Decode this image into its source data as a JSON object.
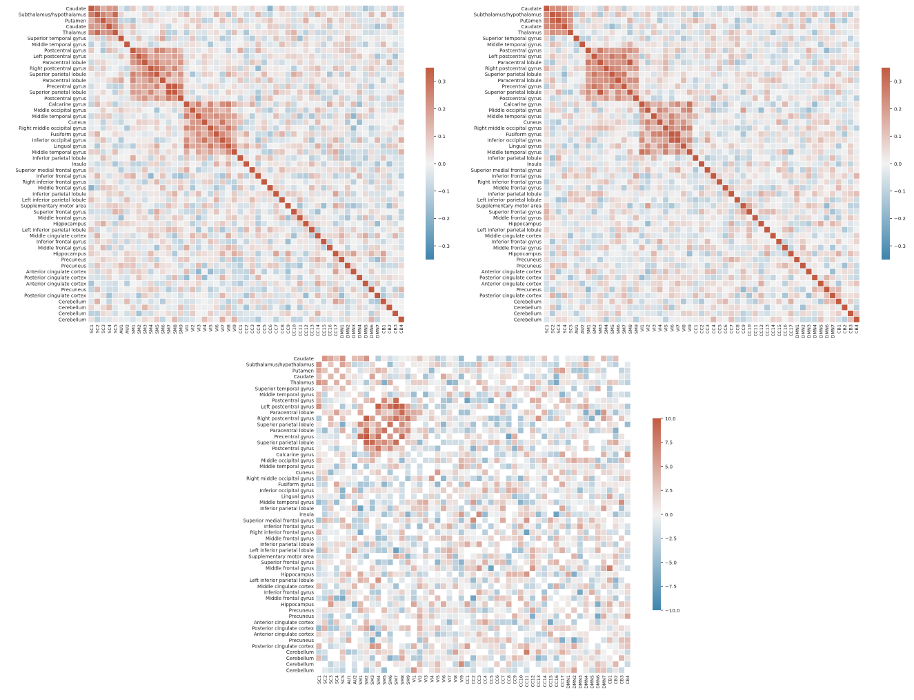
{
  "row_labels": [
    "Caudate",
    "Subthalamus/hypothalamus",
    "Putamen",
    "Caudate",
    "Thalamus",
    "Superior temporal gyrus",
    "Middle temporal gyrus",
    "Postcentral gyrus",
    "Left postcentral gyrus",
    "Paracentral lobule",
    "Right postcentral gyrus",
    "Superior parietal lobule",
    "Paracentral lobule",
    "Precentral gyrus",
    "Superior parietal lobule",
    "Postcentral gyrus",
    "Calcarine gyrus",
    "Middle occipital gyrus",
    "Middle temporal gyrus",
    "Cuneus",
    "Right middle occipital gyrus",
    "Fusiform gyrus",
    "Inferior occipital gyrus",
    "Lingual gyrus",
    "Middle temporal gyrus",
    "Inferior parietal lobule",
    "Insula",
    "Superior medial frontal gyrus",
    "Inferior frontal gyrus",
    "Right inferior frontal gyrus",
    "Middle frontal gyrus",
    "Inferior parietal lobule",
    "Left inferior parietal lobule",
    "Supplementary motor area",
    "Superior frontal gyrus",
    "Middle frontal gyrus",
    "Hippocampus",
    "Left inferior parietal lobule",
    "Middle cingulate cortex",
    "Inferior frontal gyrus",
    "Middle frontal gyrus",
    "Hippocampus",
    "Precuneus",
    "Precuneus",
    "Anterior cingulate cortex",
    "Posterior cingulate cortex",
    "Anterior cingulate cortex",
    "Precuneus",
    "Posterior cingulate cortex",
    "Cerebellum",
    "Cerebellum",
    "Cerebellum",
    "Cerebellum"
  ],
  "col_labels_a": [
    "SC1",
    "SC2",
    "SC3",
    "SC4",
    "SC5",
    "AU1",
    "AU2",
    "SM1",
    "SM2",
    "SM3",
    "SM4",
    "SM5",
    "SM6",
    "SM7",
    "SM8",
    "SM9",
    "VI1",
    "VI2",
    "VI3",
    "VI4",
    "VI5",
    "VI6",
    "VI7",
    "VI8",
    "VI9",
    "CC1",
    "CC2",
    "CC3",
    "CC4",
    "CC5",
    "CC6",
    "CC7",
    "CC8",
    "CC9",
    "CC10",
    "CC11",
    "CC12",
    "CC13",
    "CC14",
    "CC15",
    "CC16",
    "CC17",
    "DMN1",
    "DMN2",
    "DMN3",
    "DMN4",
    "DMN5",
    "DMN6",
    "DMN7",
    "CB1",
    "CB2",
    "CB3",
    "CB4"
  ],
  "col_labels_b": [
    "SC1",
    "SC2",
    "SC3",
    "SC4",
    "SC5",
    "AU1",
    "AU2",
    "SM1",
    "SM2",
    "SM3",
    "SM4",
    "SM5",
    "SM6",
    "SM7",
    "SM8",
    "SM9",
    "VI1",
    "VI2",
    "VI3",
    "VI4",
    "VI5",
    "VI6",
    "VI7",
    "VI8",
    "VI9",
    "CC1",
    "CC2",
    "CC3",
    "CC4",
    "CC5",
    "CC6",
    "CC7",
    "CC8",
    "CC9",
    "CC10",
    "CC11",
    "CC12",
    "CC13",
    "CC14",
    "CC15",
    "CC16",
    "CC17",
    "DMN1",
    "DMN2",
    "DMN3",
    "DMN4",
    "DMN5",
    "DMN6",
    "DMN7",
    "CB1",
    "CB2",
    "CB3",
    "CB4"
  ],
  "colors": {
    "low": "#3d84ad",
    "mid": "#f2f2f2",
    "high": "#c25a41",
    "na": "#ffffff"
  },
  "chart_data": [
    {
      "type": "heatmap",
      "matrix": "A",
      "diagonal": 1,
      "clim": [
        -0.35,
        0.35
      ],
      "colorbar_ticks": [
        0.3,
        0.2,
        0.1,
        0.0,
        -0.1,
        -0.2,
        -0.3
      ],
      "colorbar_tick_labels": [
        "0.3",
        "0.2",
        "0.1",
        "0.0",
        "−0.1",
        "−0.2",
        "−0.3"
      ],
      "colorbar_range": [
        -0.35,
        0.35
      ],
      "blocks": [
        {
          "start": 0,
          "end": 5,
          "value": 0.22
        },
        {
          "start": 7,
          "end": 16,
          "value": 0.2
        },
        {
          "start": 16,
          "end": 25,
          "value": 0.18
        }
      ],
      "noise_seed": 11,
      "noise_scale": 0.13
    },
    {
      "type": "heatmap",
      "matrix": "B",
      "diagonal": 1,
      "clim": [
        -0.35,
        0.35
      ],
      "colorbar_ticks": [
        0.3,
        0.2,
        0.1,
        0.0,
        -0.1,
        -0.2,
        -0.3
      ],
      "colorbar_tick_labels": [
        "0.3",
        "0.2",
        "0.1",
        "0.0",
        "−0.1",
        "−0.2",
        "−0.3"
      ],
      "colorbar_range": [
        -0.35,
        0.35
      ],
      "blocks": [
        {
          "start": 0,
          "end": 5,
          "value": 0.22
        },
        {
          "start": 7,
          "end": 16,
          "value": 0.2
        },
        {
          "start": 16,
          "end": 25,
          "value": 0.18
        }
      ],
      "noise_seed": 29,
      "noise_scale": 0.13
    },
    {
      "type": "heatmap",
      "matrix": "difference",
      "diagonal": null,
      "clim": [
        -10,
        10
      ],
      "colorbar_ticks": [
        10,
        7.5,
        5,
        2.5,
        0,
        -2.5,
        -5,
        -7.5,
        -10
      ],
      "colorbar_tick_labels": [
        "10.0",
        "7.5",
        "5.0",
        "2.5",
        "0.0",
        "−2.5",
        "−5.0",
        "−7.5",
        "−10.0"
      ],
      "colorbar_range": [
        -10,
        10
      ],
      "blocks": [
        {
          "start": 7,
          "end": 16,
          "value": 6.0
        },
        {
          "start": 0,
          "end": 5,
          "value": 4.0
        }
      ],
      "noise_seed": 47,
      "noise_scale": 5.0,
      "blank_fraction": 0.18
    }
  ]
}
